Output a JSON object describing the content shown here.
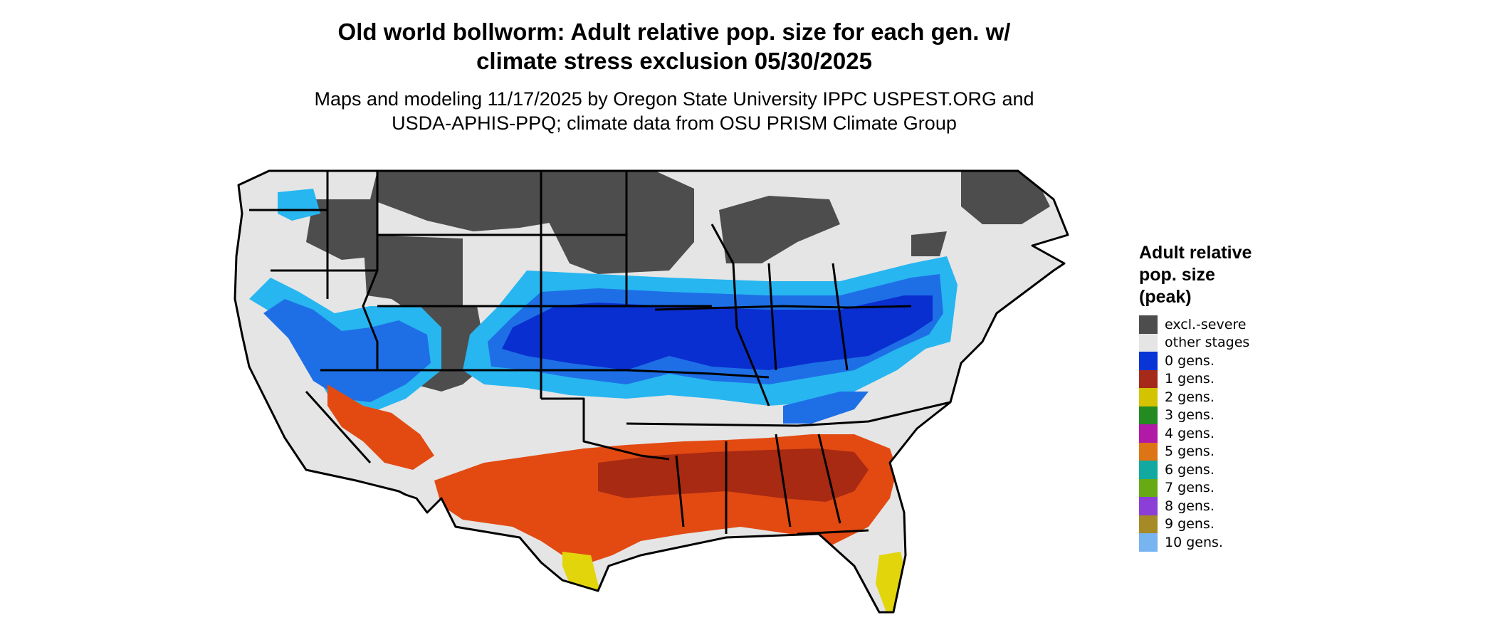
{
  "title": {
    "line1": "Old world bollworm: Adult relative pop. size for each gen. w/",
    "line2": "climate stress exclusion 05/30/2025"
  },
  "subtitle": {
    "line1": "Maps and modeling 11/17/2025 by Oregon State University IPPC USPEST.ORG and",
    "line2": "USDA-APHIS-PPQ; climate data from OSU PRISM Climate Group"
  },
  "legend": {
    "title_line1": "Adult relative",
    "title_line2": "pop. size",
    "title_line3": "(peak)",
    "items": [
      {
        "label": "excl.-severe",
        "color": "#4d4d4d"
      },
      {
        "label": "other stages",
        "color": "#e5e5e5"
      },
      {
        "label": "0 gens.",
        "color": "#0a35d6"
      },
      {
        "label": "1 gens.",
        "color": "#a52a1a"
      },
      {
        "label": "2 gens.",
        "color": "#d4c300"
      },
      {
        "label": "3 gens.",
        "color": "#238b22"
      },
      {
        "label": "4 gens.",
        "color": "#b01aa6"
      },
      {
        "label": "5 gens.",
        "color": "#dd7416"
      },
      {
        "label": "6 gens.",
        "color": "#12a9a0"
      },
      {
        "label": "7 gens.",
        "color": "#66aa15"
      },
      {
        "label": "8 gens.",
        "color": "#8b3fd6"
      },
      {
        "label": "9 gens.",
        "color": "#a58a26"
      },
      {
        "label": "10 gens.",
        "color": "#78b4f0"
      }
    ]
  },
  "map_colors": {
    "state_fill": "#e5e5e5",
    "excluded": "#4d4d4d",
    "blue_dark": "#0a2fd0",
    "blue_mid": "#1e6fe6",
    "blue_light": "#27b6f0",
    "red_dark": "#a82a12",
    "orange": "#e24a12",
    "yellow": "#e2d50c",
    "border": "#000000"
  }
}
